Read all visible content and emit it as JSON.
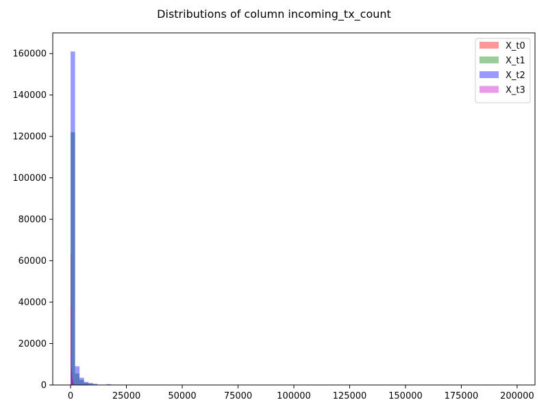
{
  "chart_data": {
    "type": "bar",
    "title": "Distributions of column incoming_tx_count",
    "xlabel": "",
    "ylabel": "",
    "xlim": [
      -8000,
      208000
    ],
    "ylim": [
      0,
      170000
    ],
    "x_ticks": [
      0,
      25000,
      50000,
      75000,
      100000,
      125000,
      150000,
      175000,
      200000
    ],
    "y_ticks": [
      0,
      20000,
      40000,
      60000,
      80000,
      100000,
      120000,
      140000,
      160000
    ],
    "grid": false,
    "legend": "top-right",
    "series": [
      {
        "name": "X_t0",
        "color": "#ff0000",
        "opacity": 0.4,
        "bins": [
          {
            "x0": 0,
            "x1": 300,
            "count": 63000
          },
          {
            "x0": 300,
            "x1": 600,
            "count": 8000
          },
          {
            "x0": 600,
            "x1": 900,
            "count": 3000
          },
          {
            "x0": 900,
            "x1": 1200,
            "count": 1200
          }
        ]
      },
      {
        "name": "X_t1",
        "color": "#008000",
        "opacity": 0.4,
        "bins": [
          {
            "x0": 0,
            "x1": 2000,
            "count": 122000
          },
          {
            "x0": 2000,
            "x1": 4000,
            "count": 5500
          },
          {
            "x0": 4000,
            "x1": 6000,
            "count": 2500
          },
          {
            "x0": 6000,
            "x1": 8000,
            "count": 1000
          },
          {
            "x0": 8000,
            "x1": 10000,
            "count": 500
          }
        ]
      },
      {
        "name": "X_t2",
        "color": "#0000ff",
        "opacity": 0.4,
        "bins": [
          {
            "x0": 0,
            "x1": 2000,
            "count": 161000
          },
          {
            "x0": 2000,
            "x1": 4000,
            "count": 9000
          },
          {
            "x0": 4000,
            "x1": 6000,
            "count": 3500
          },
          {
            "x0": 6000,
            "x1": 8000,
            "count": 1500
          },
          {
            "x0": 8000,
            "x1": 10000,
            "count": 1000
          },
          {
            "x0": 10000,
            "x1": 12000,
            "count": 600
          },
          {
            "x0": 16000,
            "x1": 18000,
            "count": 400
          }
        ]
      },
      {
        "name": "X_t3",
        "color": "#c800c8",
        "opacity": 0.4,
        "bins": [
          {
            "x0": 0,
            "x1": 400,
            "count": 38000
          },
          {
            "x0": 400,
            "x1": 800,
            "count": 6000
          },
          {
            "x0": 800,
            "x1": 1200,
            "count": 2500
          },
          {
            "x0": 1200,
            "x1": 1600,
            "count": 1000
          }
        ]
      }
    ]
  }
}
